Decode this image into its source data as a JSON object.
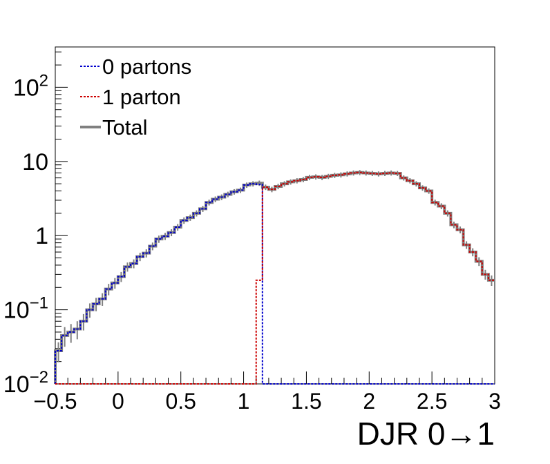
{
  "chart_data": {
    "type": "line",
    "style": "step-histogram",
    "title": "",
    "xlabel": "DJR 0→1",
    "ylabel": "",
    "xlim": [
      -0.5,
      3
    ],
    "ylim": [
      0.01,
      350
    ],
    "yscale": "log",
    "x_ticks": [
      {
        "value": -0.5,
        "label": "−0.5"
      },
      {
        "value": 0,
        "label": "0"
      },
      {
        "value": 0.5,
        "label": "0.5"
      },
      {
        "value": 1,
        "label": "1"
      },
      {
        "value": 1.5,
        "label": "1.5"
      },
      {
        "value": 2,
        "label": "2"
      },
      {
        "value": 2.5,
        "label": "2.5"
      },
      {
        "value": 3,
        "label": "3"
      }
    ],
    "y_ticks": [
      {
        "value": 0.01,
        "base": "10",
        "exp": "−2"
      },
      {
        "value": 0.1,
        "base": "10",
        "exp": "−1"
      },
      {
        "value": 1,
        "base": "1",
        "exp": ""
      },
      {
        "value": 10,
        "base": "10",
        "exp": ""
      },
      {
        "value": 100,
        "base": "10",
        "exp": "2"
      }
    ],
    "grid": false,
    "legend_position": "top-left",
    "bin_edges": [
      -0.5,
      -0.45,
      -0.4,
      -0.35,
      -0.3,
      -0.25,
      -0.2,
      -0.15,
      -0.1,
      -0.05,
      0,
      0.05,
      0.1,
      0.15,
      0.2,
      0.25,
      0.3,
      0.35,
      0.4,
      0.45,
      0.5,
      0.55,
      0.6,
      0.65,
      0.7,
      0.75,
      0.8,
      0.85,
      0.9,
      0.95,
      1,
      1.05,
      1.1,
      1.15,
      1.2,
      1.25,
      1.3,
      1.35,
      1.4,
      1.45,
      1.5,
      1.55,
      1.6,
      1.65,
      1.7,
      1.75,
      1.8,
      1.85,
      1.9,
      1.95,
      2,
      2.05,
      2.1,
      2.15,
      2.2,
      2.25,
      2.3,
      2.35,
      2.4,
      2.45,
      2.5,
      2.55,
      2.6,
      2.65,
      2.7,
      2.75,
      2.8,
      2.85,
      2.9,
      2.95,
      3
    ],
    "series": [
      {
        "name": "0 partons",
        "color": "#0000cc",
        "dash": "dotted",
        "values": [
          0.028,
          0.045,
          0.05,
          0.055,
          0.07,
          0.1,
          0.12,
          0.14,
          0.19,
          0.23,
          0.28,
          0.38,
          0.42,
          0.52,
          0.58,
          0.72,
          0.9,
          0.98,
          1.1,
          1.3,
          1.6,
          1.75,
          2.0,
          2.3,
          2.8,
          3.1,
          3.3,
          3.6,
          3.9,
          4.1,
          4.8,
          5.0,
          4.9,
          0.009,
          0.009,
          0.009,
          0.009,
          0.009,
          0.009,
          0.009,
          0.009,
          0.009,
          0.009,
          0.009,
          0.009,
          0.009,
          0.009,
          0.009,
          0.009,
          0.009,
          0.009,
          0.009,
          0.009,
          0.009,
          0.009,
          0.009,
          0.009,
          0.009,
          0.009,
          0.009,
          0.009,
          0.009,
          0.009,
          0.009,
          0.009,
          0.009,
          0.009,
          0.009,
          0.009,
          0.009
        ]
      },
      {
        "name": "1 parton",
        "color": "#cc0000",
        "dash": "dotted",
        "values": [
          0.009,
          0.009,
          0.009,
          0.009,
          0.009,
          0.009,
          0.009,
          0.009,
          0.009,
          0.009,
          0.009,
          0.009,
          0.009,
          0.009,
          0.009,
          0.009,
          0.009,
          0.009,
          0.009,
          0.009,
          0.009,
          0.009,
          0.009,
          0.009,
          0.009,
          0.009,
          0.009,
          0.009,
          0.009,
          0.009,
          0.009,
          0.009,
          0.25,
          4.5,
          4.2,
          4.6,
          5.0,
          5.3,
          5.5,
          5.7,
          6.1,
          6.2,
          6.1,
          6.3,
          6.5,
          6.6,
          6.8,
          7.0,
          7.1,
          7.0,
          6.9,
          6.8,
          6.9,
          7.0,
          6.9,
          6.0,
          5.5,
          5.0,
          4.4,
          4.0,
          2.8,
          2.5,
          2.0,
          1.4,
          1.2,
          0.75,
          0.6,
          0.45,
          0.3,
          0.25
        ]
      },
      {
        "name": "Total",
        "color": "#808080",
        "dash": "solid",
        "values": [
          0.028,
          0.045,
          0.05,
          0.055,
          0.07,
          0.1,
          0.12,
          0.14,
          0.19,
          0.23,
          0.28,
          0.38,
          0.42,
          0.52,
          0.58,
          0.72,
          0.9,
          0.98,
          1.1,
          1.3,
          1.6,
          1.75,
          2.0,
          2.3,
          2.8,
          3.1,
          3.3,
          3.6,
          3.9,
          4.1,
          4.8,
          5.0,
          5.1,
          4.5,
          4.2,
          4.6,
          5.0,
          5.3,
          5.5,
          5.7,
          6.1,
          6.2,
          6.1,
          6.3,
          6.5,
          6.6,
          6.8,
          7.0,
          7.1,
          7.0,
          6.9,
          6.8,
          6.9,
          7.0,
          6.9,
          6.0,
          5.5,
          5.0,
          4.4,
          4.0,
          2.8,
          2.5,
          2.0,
          1.4,
          1.2,
          0.75,
          0.6,
          0.45,
          0.3,
          0.25
        ]
      }
    ]
  }
}
